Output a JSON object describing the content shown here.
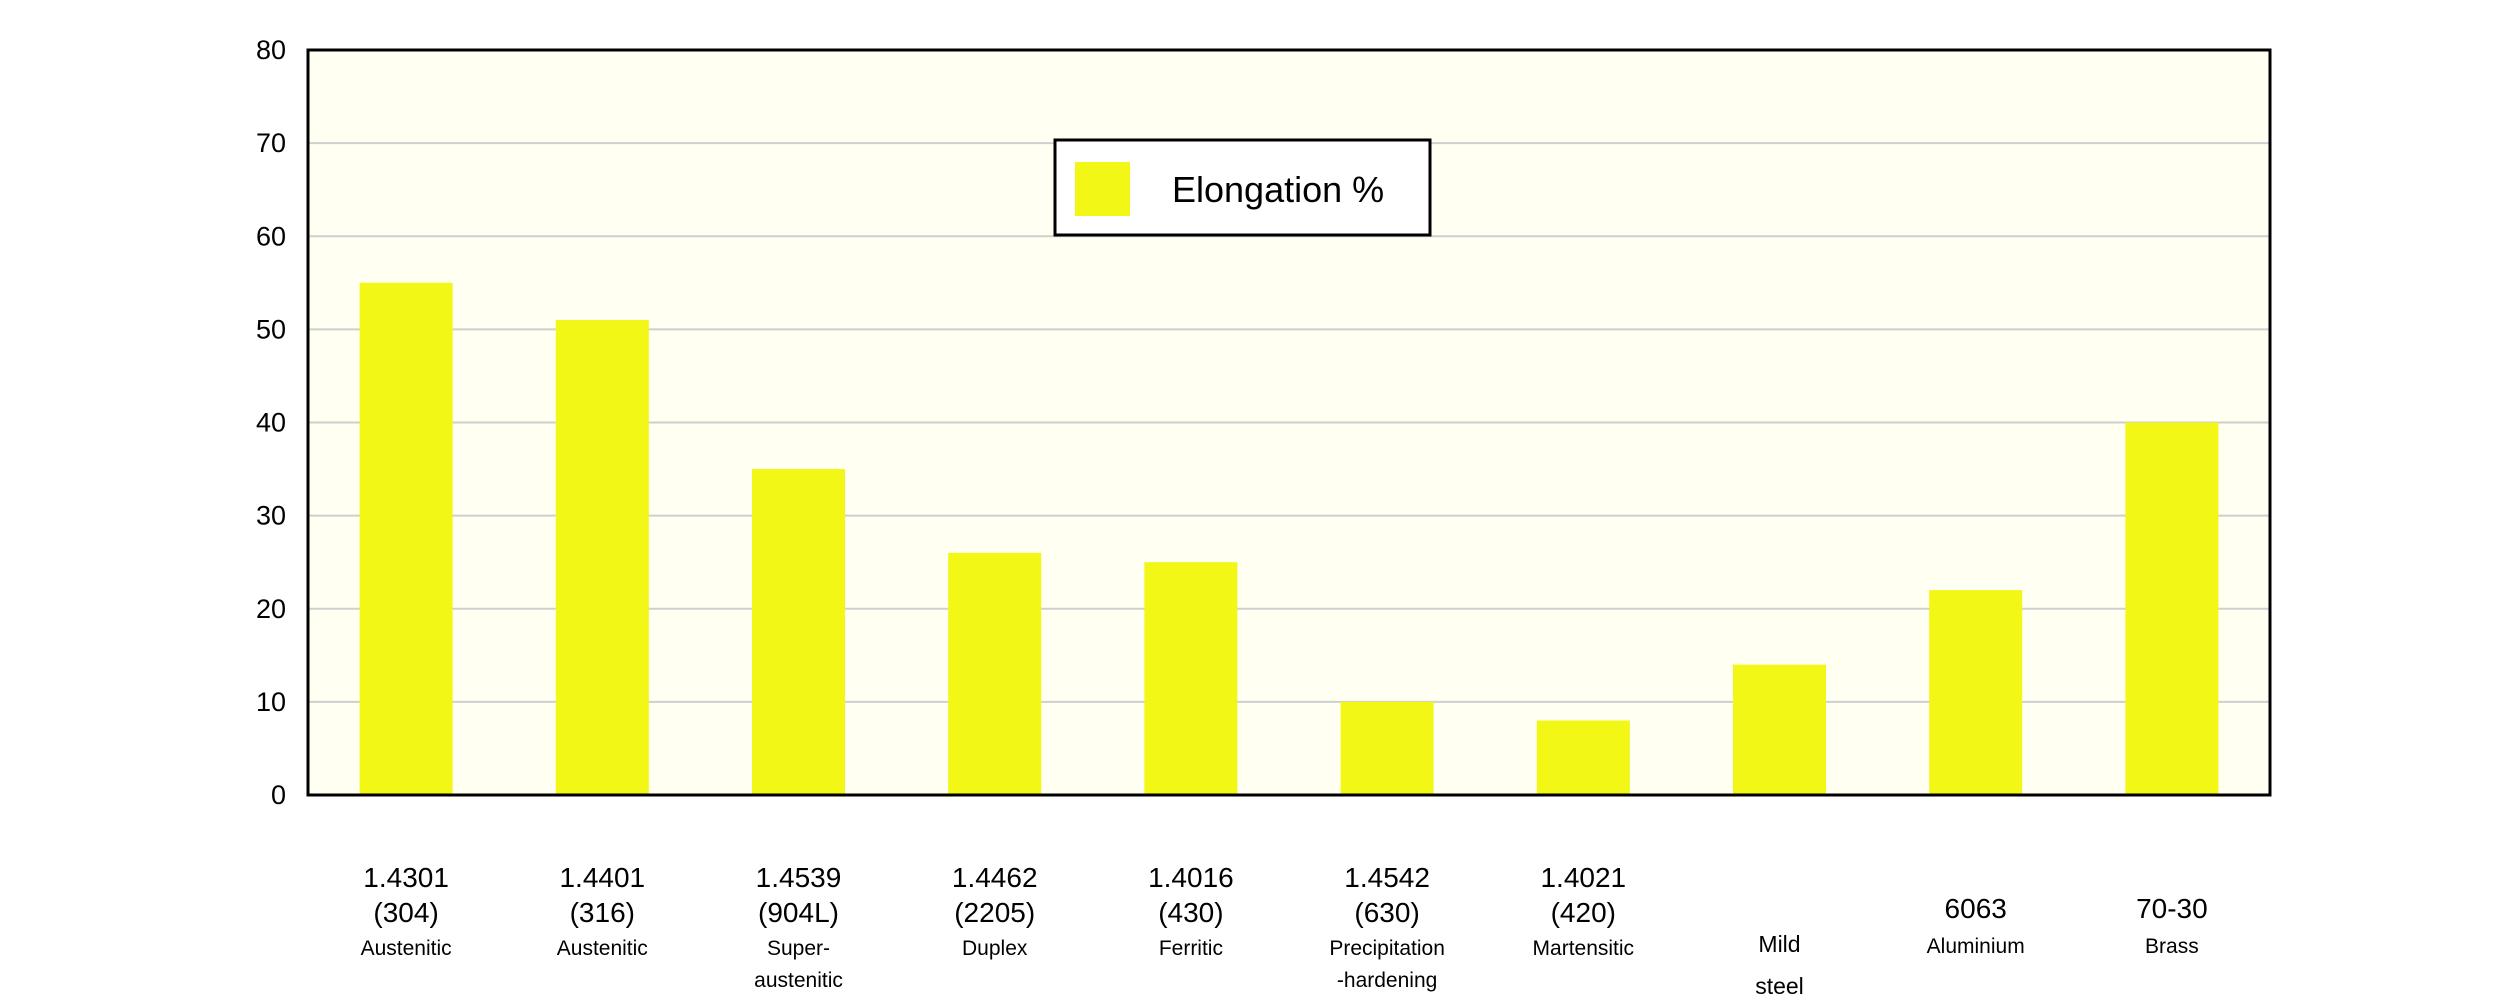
{
  "chart_data": {
    "type": "bar",
    "title": "",
    "xlabel": "",
    "ylabel": "",
    "ylim": [
      0,
      80
    ],
    "yticks": [
      0,
      10,
      20,
      30,
      40,
      50,
      60,
      70,
      80
    ],
    "grid": true,
    "legend_position": "top-center",
    "categories": [
      [
        "1.4301",
        "(304)",
        "Austenitic"
      ],
      [
        "1.4401",
        "(316)",
        "Austenitic"
      ],
      [
        "1.4539",
        "(904L)",
        "Super-",
        "austenitic"
      ],
      [
        "1.4462",
        "(2205)",
        "Duplex"
      ],
      [
        "1.4016",
        "(430)",
        "Ferritic"
      ],
      [
        "1.4542",
        "(630)",
        "Precipitation",
        "-hardening"
      ],
      [
        "1.4021",
        "(420)",
        "Martensitic"
      ],
      [
        "Mild",
        "steel"
      ],
      [
        "6063",
        "Aluminium"
      ],
      [
        "70-30",
        "Brass"
      ]
    ],
    "series": [
      {
        "name": "Elongation %",
        "values": [
          55,
          51,
          35,
          26,
          25,
          10,
          8,
          14,
          22,
          40
        ]
      }
    ],
    "colors": {
      "bar": "#f2f716",
      "plot_bg": "#fffff2",
      "grid": "#cfcfcf",
      "axis": "#000000"
    }
  }
}
